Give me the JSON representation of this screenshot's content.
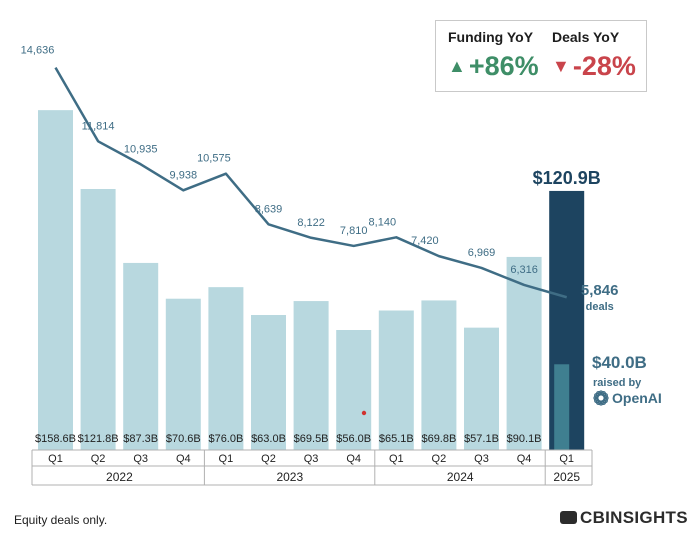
{
  "kpis": {
    "funding": {
      "label": "Funding YoY",
      "value": "+86%",
      "arrow": "▲",
      "color": "#3e8e67"
    },
    "deals": {
      "label": "Deals YoY",
      "value": "-28%",
      "arrow": "▼",
      "color": "#c9444b"
    }
  },
  "footnote": "Equity deals only.",
  "brand": "CBINSIGHTS",
  "chart_data": {
    "type": "bar",
    "categories": [
      "Q1 2022",
      "Q2 2022",
      "Q3 2022",
      "Q4 2022",
      "Q1 2023",
      "Q2 2023",
      "Q3 2023",
      "Q4 2023",
      "Q1 2024",
      "Q2 2024",
      "Q3 2024",
      "Q4 2024",
      "Q1 2025"
    ],
    "quarter_labels": [
      "Q1",
      "Q2",
      "Q3",
      "Q4",
      "Q1",
      "Q2",
      "Q3",
      "Q4",
      "Q1",
      "Q2",
      "Q3",
      "Q4",
      "Q1"
    ],
    "years": [
      {
        "label": "2022",
        "start": 0,
        "end": 3
      },
      {
        "label": "2023",
        "start": 4,
        "end": 7
      },
      {
        "label": "2024",
        "start": 8,
        "end": 11
      },
      {
        "label": "2025",
        "start": 12,
        "end": 12
      }
    ],
    "series": [
      {
        "name": "Funding ($B)",
        "kind": "bar",
        "values": [
          158.6,
          121.8,
          87.3,
          70.6,
          76.0,
          63.0,
          69.5,
          56.0,
          65.1,
          69.8,
          57.1,
          90.1,
          120.9
        ],
        "value_labels": [
          "$158.6B",
          "$121.8B",
          "$87.3B",
          "$70.6B",
          "$76.0B",
          "$63.0B",
          "$69.5B",
          "$56.0B",
          "$65.1B",
          "$69.8B",
          "$57.1B",
          "$90.1B",
          "$120.9B"
        ]
      },
      {
        "name": "Deals",
        "kind": "line",
        "values": [
          14636,
          11814,
          10935,
          9938,
          10575,
          8639,
          8122,
          7810,
          8140,
          7420,
          6969,
          6316,
          5846
        ],
        "value_labels": [
          "14,636",
          "11,814",
          "10,935",
          "9,938",
          "10,575",
          "8,639",
          "8,122",
          "7,810",
          "8,140",
          "7,420",
          "6,969",
          "6,316",
          "5,846"
        ]
      }
    ],
    "highlight": {
      "index": 12,
      "total_label": "$120.9B",
      "deals_suffix": "deals",
      "openai_value": 40.0,
      "openai_label": "$40.0B",
      "openai_caption": "raised by",
      "openai_name": "OpenAI"
    },
    "colors": {
      "bar": "#b8d8df",
      "bar_highlight": "#1d4460",
      "bar_openai": "#3f7f90",
      "line": "#3f6d85",
      "label": "#3f6d85",
      "axis_text": "#222222",
      "grid": "#b0b0b0"
    },
    "ylim_funding": [
      0,
      175
    ],
    "ylim_deals": [
      0,
      15500
    ]
  }
}
